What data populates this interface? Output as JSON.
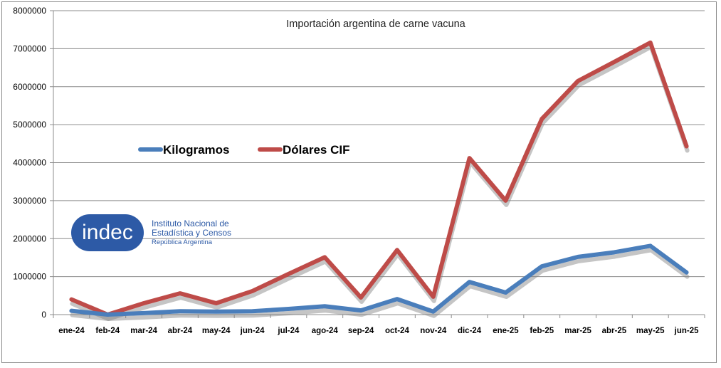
{
  "chart_data": {
    "type": "line",
    "title": "Importación argentina de carne vacuna",
    "xlabel": "",
    "ylabel": "",
    "ylim": [
      0,
      8000000
    ],
    "yticks": [
      "0",
      "1000000",
      "2000000",
      "3000000",
      "4000000",
      "5000000",
      "6000000",
      "7000000",
      "8000000"
    ],
    "categories": [
      "ene-24",
      "feb-24",
      "mar-24",
      "abr-24",
      "may-24",
      "jun-24",
      "jul-24",
      "ago-24",
      "sep-24",
      "oct-24",
      "nov-24",
      "dic-24",
      "ene-25",
      "feb-25",
      "mar-25",
      "abr-25",
      "may-25",
      "jun-25"
    ],
    "series": [
      {
        "name": "Kilogramos",
        "color": "#4a7ebb",
        "values": [
          100000,
          0,
          40000,
          90000,
          80000,
          90000,
          150000,
          220000,
          110000,
          410000,
          80000,
          860000,
          580000,
          1270000,
          1520000,
          1640000,
          1810000,
          1110000
        ]
      },
      {
        "name": "Dólares CIF",
        "color": "#be4b48",
        "values": [
          400000,
          0,
          300000,
          560000,
          300000,
          620000,
          1070000,
          1510000,
          450000,
          1700000,
          470000,
          4120000,
          3000000,
          5150000,
          6150000,
          6650000,
          7160000,
          4430000
        ]
      }
    ],
    "grid": true,
    "legend_position": "left-middle"
  },
  "logo": {
    "word": "indec",
    "line1": "Instituto Nacional de",
    "line2": "Estadística y Censos",
    "line3": "República Argentina",
    "color": "#2d5aa6"
  }
}
